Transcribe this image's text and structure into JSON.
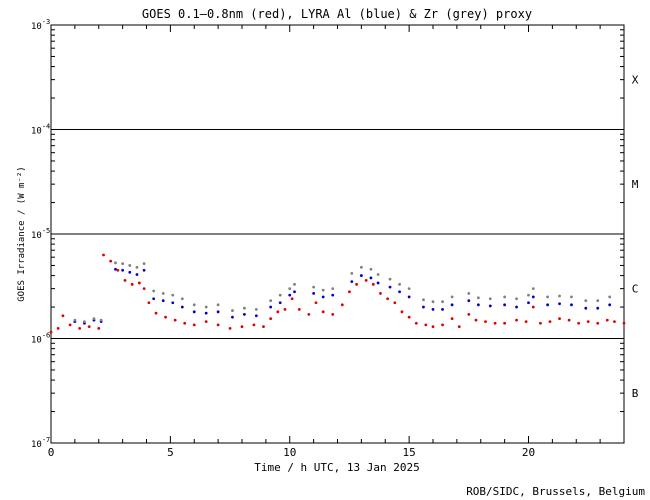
{
  "chart_data": {
    "type": "scatter",
    "title": "GOES 0.1—0.8nm (red), LYRA Al (blue) & Zr (grey) proxy",
    "xlabel": "Time / h UTC, 13 Jan 2025",
    "ylabel": "GOES Irradiance / (W m⁻²)",
    "xlim": [
      0,
      24
    ],
    "ylim": [
      1e-07,
      0.001
    ],
    "yscale": "log",
    "x_ticks": [
      0,
      5,
      10,
      15,
      20
    ],
    "x_tick_labels": [
      "0",
      "5",
      "10",
      "15",
      "20"
    ],
    "y_ticks": [
      1e-07,
      1e-06,
      1e-05,
      0.0001,
      0.001
    ],
    "y_tick_labels": [
      {
        "base": "10",
        "exp": "-7"
      },
      {
        "base": "10",
        "exp": "-6"
      },
      {
        "base": "10",
        "exp": "-5"
      },
      {
        "base": "10",
        "exp": "-4"
      },
      {
        "base": "10",
        "exp": "-3"
      }
    ],
    "class_lines": [
      1e-06,
      1e-05,
      0.0001
    ],
    "class_labels": [
      {
        "label": "B",
        "value": 3e-07
      },
      {
        "label": "C",
        "value": 3e-06
      },
      {
        "label": "M",
        "value": 3e-05
      },
      {
        "label": "X",
        "value": 0.0003
      }
    ],
    "series": [
      {
        "color": "#e00000",
        "points": [
          [
            0.0,
            1.15e-06
          ],
          [
            0.3,
            1.25e-06
          ],
          [
            0.5,
            1.65e-06
          ],
          [
            0.8,
            1.35e-06
          ],
          [
            1.2,
            1.25e-06
          ],
          [
            1.6,
            1.3e-06
          ],
          [
            2.0,
            1.25e-06
          ],
          [
            2.2,
            6.3e-06
          ],
          [
            2.5,
            5.5e-06
          ],
          [
            2.8,
            4.5e-06
          ],
          [
            3.1,
            3.6e-06
          ],
          [
            3.4,
            3.3e-06
          ],
          [
            3.7,
            3.4e-06
          ],
          [
            3.9,
            3e-06
          ],
          [
            4.1,
            2.2e-06
          ],
          [
            4.4,
            1.75e-06
          ],
          [
            4.8,
            1.6e-06
          ],
          [
            5.2,
            1.5e-06
          ],
          [
            5.6,
            1.4e-06
          ],
          [
            6.0,
            1.35e-06
          ],
          [
            6.5,
            1.45e-06
          ],
          [
            7.0,
            1.35e-06
          ],
          [
            7.5,
            1.25e-06
          ],
          [
            8.0,
            1.3e-06
          ],
          [
            8.5,
            1.35e-06
          ],
          [
            8.9,
            1.3e-06
          ],
          [
            9.2,
            1.55e-06
          ],
          [
            9.5,
            1.8e-06
          ],
          [
            9.8,
            1.9e-06
          ],
          [
            10.1,
            2.4e-06
          ],
          [
            10.4,
            1.9e-06
          ],
          [
            10.8,
            1.7e-06
          ],
          [
            11.1,
            2.2e-06
          ],
          [
            11.4,
            1.8e-06
          ],
          [
            11.8,
            1.7e-06
          ],
          [
            12.2,
            2.1e-06
          ],
          [
            12.5,
            2.8e-06
          ],
          [
            12.8,
            3.3e-06
          ],
          [
            13.2,
            3.6e-06
          ],
          [
            13.5,
            3.3e-06
          ],
          [
            13.8,
            2.7e-06
          ],
          [
            14.1,
            2.4e-06
          ],
          [
            14.4,
            2.2e-06
          ],
          [
            14.7,
            1.8e-06
          ],
          [
            15.0,
            1.6e-06
          ],
          [
            15.3,
            1.4e-06
          ],
          [
            15.7,
            1.35e-06
          ],
          [
            16.0,
            1.3e-06
          ],
          [
            16.4,
            1.35e-06
          ],
          [
            16.8,
            1.55e-06
          ],
          [
            17.1,
            1.3e-06
          ],
          [
            17.5,
            1.7e-06
          ],
          [
            17.8,
            1.5e-06
          ],
          [
            18.2,
            1.45e-06
          ],
          [
            18.6,
            1.4e-06
          ],
          [
            19.0,
            1.4e-06
          ],
          [
            19.5,
            1.5e-06
          ],
          [
            19.9,
            1.45e-06
          ],
          [
            20.2,
            2e-06
          ],
          [
            20.5,
            1.4e-06
          ],
          [
            20.9,
            1.45e-06
          ],
          [
            21.3,
            1.55e-06
          ],
          [
            21.7,
            1.5e-06
          ],
          [
            22.1,
            1.4e-06
          ],
          [
            22.5,
            1.45e-06
          ],
          [
            22.9,
            1.4e-06
          ],
          [
            23.3,
            1.5e-06
          ],
          [
            23.6,
            1.45e-06
          ],
          [
            24.0,
            1.4e-06
          ]
        ]
      },
      {
        "color": "#0000cc",
        "points": [
          [
            1.0,
            1.45e-06
          ],
          [
            1.4,
            1.4e-06
          ],
          [
            1.8,
            1.5e-06
          ],
          [
            2.1,
            1.45e-06
          ],
          [
            2.7,
            4.6e-06
          ],
          [
            3.0,
            4.5e-06
          ],
          [
            3.3,
            4.3e-06
          ],
          [
            3.6,
            4.1e-06
          ],
          [
            3.9,
            4.5e-06
          ],
          [
            4.3,
            2.4e-06
          ],
          [
            4.7,
            2.3e-06
          ],
          [
            5.1,
            2.2e-06
          ],
          [
            5.5,
            2e-06
          ],
          [
            6.0,
            1.8e-06
          ],
          [
            6.5,
            1.75e-06
          ],
          [
            7.0,
            1.8e-06
          ],
          [
            7.6,
            1.6e-06
          ],
          [
            8.1,
            1.7e-06
          ],
          [
            8.6,
            1.65e-06
          ],
          [
            9.2,
            2e-06
          ],
          [
            9.6,
            2.2e-06
          ],
          [
            10.0,
            2.6e-06
          ],
          [
            10.2,
            2.8e-06
          ],
          [
            11.0,
            2.7e-06
          ],
          [
            11.4,
            2.5e-06
          ],
          [
            11.8,
            2.6e-06
          ],
          [
            12.6,
            3.5e-06
          ],
          [
            13.0,
            4e-06
          ],
          [
            13.4,
            3.8e-06
          ],
          [
            13.7,
            3.4e-06
          ],
          [
            14.2,
            3.1e-06
          ],
          [
            14.6,
            2.8e-06
          ],
          [
            15.0,
            2.5e-06
          ],
          [
            15.6,
            2e-06
          ],
          [
            16.0,
            1.9e-06
          ],
          [
            16.4,
            1.9e-06
          ],
          [
            16.8,
            2.1e-06
          ],
          [
            17.5,
            2.3e-06
          ],
          [
            17.9,
            2.1e-06
          ],
          [
            18.4,
            2.05e-06
          ],
          [
            19.0,
            2.1e-06
          ],
          [
            19.5,
            2e-06
          ],
          [
            20.0,
            2.2e-06
          ],
          [
            20.2,
            2.5e-06
          ],
          [
            20.8,
            2.1e-06
          ],
          [
            21.3,
            2.15e-06
          ],
          [
            21.8,
            2.1e-06
          ],
          [
            22.4,
            1.95e-06
          ],
          [
            22.9,
            1.95e-06
          ],
          [
            23.4,
            2.1e-06
          ]
        ]
      },
      {
        "color": "#808080",
        "points": [
          [
            1.0,
            1.5e-06
          ],
          [
            1.4,
            1.45e-06
          ],
          [
            1.8,
            1.55e-06
          ],
          [
            2.1,
            1.5e-06
          ],
          [
            2.7,
            5.3e-06
          ],
          [
            3.0,
            5.2e-06
          ],
          [
            3.3,
            5e-06
          ],
          [
            3.6,
            4.8e-06
          ],
          [
            3.9,
            5.2e-06
          ],
          [
            4.3,
            2.85e-06
          ],
          [
            4.7,
            2.7e-06
          ],
          [
            5.1,
            2.6e-06
          ],
          [
            5.5,
            2.4e-06
          ],
          [
            6.0,
            2.1e-06
          ],
          [
            6.5,
            2e-06
          ],
          [
            7.0,
            2.1e-06
          ],
          [
            7.6,
            1.85e-06
          ],
          [
            8.1,
            1.95e-06
          ],
          [
            8.6,
            1.9e-06
          ],
          [
            9.2,
            2.3e-06
          ],
          [
            9.6,
            2.6e-06
          ],
          [
            10.0,
            3e-06
          ],
          [
            10.2,
            3.3e-06
          ],
          [
            11.0,
            3.1e-06
          ],
          [
            11.4,
            2.9e-06
          ],
          [
            11.8,
            3e-06
          ],
          [
            12.6,
            4.2e-06
          ],
          [
            13.0,
            4.8e-06
          ],
          [
            13.4,
            4.6e-06
          ],
          [
            13.7,
            4.1e-06
          ],
          [
            14.2,
            3.7e-06
          ],
          [
            14.6,
            3.3e-06
          ],
          [
            15.0,
            3e-06
          ],
          [
            15.6,
            2.35e-06
          ],
          [
            16.0,
            2.25e-06
          ],
          [
            16.4,
            2.25e-06
          ],
          [
            16.8,
            2.5e-06
          ],
          [
            17.5,
            2.7e-06
          ],
          [
            17.9,
            2.45e-06
          ],
          [
            18.4,
            2.4e-06
          ],
          [
            19.0,
            2.5e-06
          ],
          [
            19.5,
            2.4e-06
          ],
          [
            20.0,
            2.6e-06
          ],
          [
            20.2,
            3e-06
          ],
          [
            20.8,
            2.5e-06
          ],
          [
            21.3,
            2.55e-06
          ],
          [
            21.8,
            2.5e-06
          ],
          [
            22.4,
            2.3e-06
          ],
          [
            22.9,
            2.3e-06
          ],
          [
            23.4,
            2.5e-06
          ]
        ]
      }
    ],
    "credit": "ROB/SIDC, Brussels, Belgium"
  }
}
